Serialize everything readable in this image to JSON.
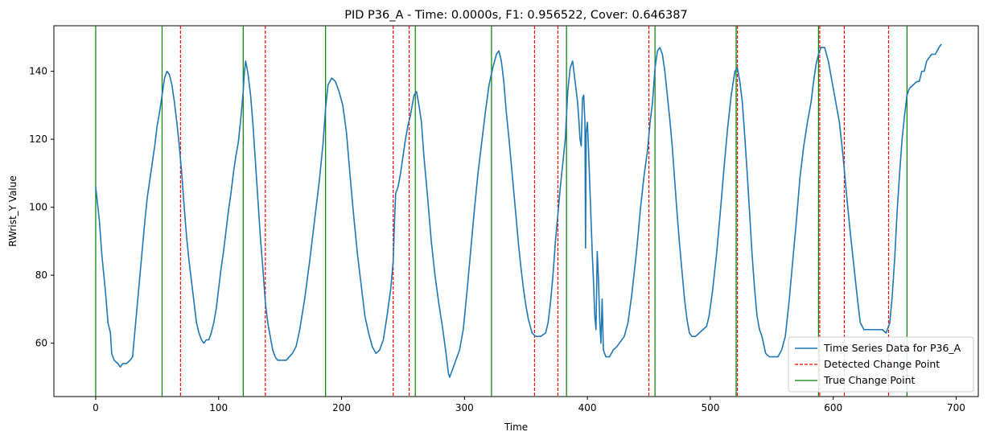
{
  "chart_data": {
    "type": "line",
    "title": "PID P36_A - Time: 0.0000s, F1: 0.956522, Cover: 0.646387",
    "xlabel": "Time",
    "ylabel": "RWrist_Y Value",
    "xlim": [
      -34,
      718
    ],
    "ylim": [
      44.3,
      153.4
    ],
    "xticks": [
      0,
      100,
      200,
      300,
      400,
      500,
      600,
      700
    ],
    "yticks": [
      60,
      80,
      100,
      120,
      140
    ],
    "grid": false,
    "legend_position": "lower-right",
    "series": [
      {
        "name": "Time Series Data for P36_A",
        "color": "#1f77b4",
        "points": [
          [
            0,
            106
          ],
          [
            3,
            96
          ],
          [
            5,
            86
          ],
          [
            8,
            75
          ],
          [
            10,
            66
          ],
          [
            12,
            63
          ],
          [
            13,
            57
          ],
          [
            15,
            55
          ],
          [
            18,
            54
          ],
          [
            20,
            53
          ],
          [
            22,
            54
          ],
          [
            25,
            54
          ],
          [
            28,
            55
          ],
          [
            30,
            56
          ],
          [
            31,
            60
          ],
          [
            32,
            64
          ],
          [
            34,
            72
          ],
          [
            36,
            80
          ],
          [
            38,
            88
          ],
          [
            40,
            96
          ],
          [
            42,
            103
          ],
          [
            44,
            108
          ],
          [
            46,
            113
          ],
          [
            48,
            118
          ],
          [
            50,
            124
          ],
          [
            52,
            128
          ],
          [
            54,
            133
          ],
          [
            56,
            138
          ],
          [
            58,
            140
          ],
          [
            60,
            139
          ],
          [
            62,
            136
          ],
          [
            64,
            131
          ],
          [
            66,
            125
          ],
          [
            68,
            118
          ],
          [
            70,
            110
          ],
          [
            72,
            100
          ],
          [
            74,
            91
          ],
          [
            76,
            84
          ],
          [
            78,
            78
          ],
          [
            80,
            72
          ],
          [
            82,
            66
          ],
          [
            84,
            63
          ],
          [
            86,
            61
          ],
          [
            88,
            60
          ],
          [
            90,
            61
          ],
          [
            92,
            61
          ],
          [
            94,
            63
          ],
          [
            96,
            66
          ],
          [
            98,
            70
          ],
          [
            100,
            76
          ],
          [
            102,
            82
          ],
          [
            104,
            87
          ],
          [
            106,
            93
          ],
          [
            108,
            99
          ],
          [
            110,
            104
          ],
          [
            112,
            110
          ],
          [
            114,
            115
          ],
          [
            116,
            119
          ],
          [
            118,
            126
          ],
          [
            120,
            134
          ],
          [
            121,
            140
          ],
          [
            122,
            143
          ],
          [
            124,
            139
          ],
          [
            126,
            133
          ],
          [
            128,
            124
          ],
          [
            130,
            113
          ],
          [
            132,
            102
          ],
          [
            134,
            91
          ],
          [
            136,
            82
          ],
          [
            138,
            72
          ],
          [
            140,
            66
          ],
          [
            142,
            62
          ],
          [
            144,
            58
          ],
          [
            146,
            56
          ],
          [
            148,
            55
          ],
          [
            150,
            55
          ],
          [
            155,
            55
          ],
          [
            160,
            57
          ],
          [
            163,
            59
          ],
          [
            166,
            64
          ],
          [
            170,
            73
          ],
          [
            174,
            84
          ],
          [
            178,
            96
          ],
          [
            182,
            108
          ],
          [
            185,
            119
          ],
          [
            187,
            129
          ],
          [
            189,
            136
          ],
          [
            192,
            138
          ],
          [
            195,
            137
          ],
          [
            198,
            134
          ],
          [
            201,
            130
          ],
          [
            204,
            122
          ],
          [
            207,
            109
          ],
          [
            210,
            97
          ],
          [
            213,
            86
          ],
          [
            216,
            77
          ],
          [
            219,
            68
          ],
          [
            222,
            63
          ],
          [
            225,
            59
          ],
          [
            228,
            57
          ],
          [
            231,
            58
          ],
          [
            234,
            61
          ],
          [
            237,
            68
          ],
          [
            240,
            76
          ],
          [
            242,
            84
          ],
          [
            243,
            95
          ],
          [
            244,
            104
          ],
          [
            246,
            106
          ],
          [
            248,
            110
          ],
          [
            250,
            115
          ],
          [
            252,
            120
          ],
          [
            254,
            124
          ],
          [
            256,
            127
          ],
          [
            258,
            131
          ],
          [
            259,
            133
          ],
          [
            261,
            134
          ],
          [
            263,
            130
          ],
          [
            265,
            125
          ],
          [
            267,
            115
          ],
          [
            270,
            103
          ],
          [
            273,
            90
          ],
          [
            276,
            80
          ],
          [
            279,
            72
          ],
          [
            282,
            65
          ],
          [
            285,
            57
          ],
          [
            287,
            51
          ],
          [
            288,
            50
          ],
          [
            290,
            52
          ],
          [
            293,
            55
          ],
          [
            296,
            58
          ],
          [
            299,
            64
          ],
          [
            302,
            75
          ],
          [
            305,
            87
          ],
          [
            308,
            99
          ],
          [
            311,
            110
          ],
          [
            314,
            119
          ],
          [
            317,
            128
          ],
          [
            320,
            136
          ],
          [
            323,
            141
          ],
          [
            326,
            145
          ],
          [
            328,
            146
          ],
          [
            330,
            143
          ],
          [
            332,
            137
          ],
          [
            334,
            128
          ],
          [
            336,
            121
          ],
          [
            338,
            113
          ],
          [
            340,
            105
          ],
          [
            342,
            97
          ],
          [
            344,
            89
          ],
          [
            346,
            82
          ],
          [
            348,
            76
          ],
          [
            350,
            71
          ],
          [
            352,
            67
          ],
          [
            355,
            63
          ],
          [
            358,
            62
          ],
          [
            362,
            62
          ],
          [
            366,
            63
          ],
          [
            368,
            66
          ],
          [
            370,
            72
          ],
          [
            372,
            80
          ],
          [
            374,
            90
          ],
          [
            376,
            98
          ],
          [
            378,
            106
          ],
          [
            380,
            113
          ],
          [
            382,
            120
          ],
          [
            383,
            127
          ],
          [
            384,
            134
          ],
          [
            386,
            141
          ],
          [
            388,
            143
          ],
          [
            390,
            137
          ],
          [
            392,
            131
          ],
          [
            393,
            126
          ],
          [
            394,
            120
          ],
          [
            395,
            118
          ],
          [
            396,
            132
          ],
          [
            397,
            133
          ],
          [
            398,
            125
          ],
          [
            398.5,
            88
          ],
          [
            399,
            122
          ],
          [
            400,
            125
          ],
          [
            401,
            116
          ],
          [
            402,
            106
          ],
          [
            403,
            96
          ],
          [
            404,
            86
          ],
          [
            405,
            78
          ],
          [
            406,
            68
          ],
          [
            407,
            64
          ],
          [
            408,
            87
          ],
          [
            409,
            79
          ],
          [
            410,
            67
          ],
          [
            411,
            60
          ],
          [
            412,
            73
          ],
          [
            413,
            58
          ],
          [
            415,
            56
          ],
          [
            418,
            56
          ],
          [
            421,
            58
          ],
          [
            424,
            59
          ],
          [
            426,
            60
          ],
          [
            430,
            62
          ],
          [
            433,
            66
          ],
          [
            436,
            74
          ],
          [
            440,
            87
          ],
          [
            443,
            99
          ],
          [
            446,
            109
          ],
          [
            449,
            117
          ],
          [
            451,
            125
          ],
          [
            453,
            131
          ],
          [
            455,
            141
          ],
          [
            457,
            146
          ],
          [
            459,
            147
          ],
          [
            461,
            145
          ],
          [
            463,
            140
          ],
          [
            465,
            133
          ],
          [
            467,
            126
          ],
          [
            469,
            118
          ],
          [
            471,
            108
          ],
          [
            473,
            98
          ],
          [
            475,
            89
          ],
          [
            477,
            81
          ],
          [
            479,
            73
          ],
          [
            481,
            67
          ],
          [
            483,
            63
          ],
          [
            485,
            62
          ],
          [
            488,
            62
          ],
          [
            491,
            63
          ],
          [
            494,
            64
          ],
          [
            497,
            65
          ],
          [
            499,
            68
          ],
          [
            502,
            76
          ],
          [
            505,
            86
          ],
          [
            508,
            98
          ],
          [
            511,
            111
          ],
          [
            514,
            123
          ],
          [
            517,
            133
          ],
          [
            520,
            140
          ],
          [
            522,
            141
          ],
          [
            524,
            137
          ],
          [
            526,
            131
          ],
          [
            528,
            121
          ],
          [
            530,
            110
          ],
          [
            532,
            98
          ],
          [
            534,
            86
          ],
          [
            536,
            76
          ],
          [
            538,
            68
          ],
          [
            540,
            64
          ],
          [
            542,
            62
          ],
          [
            545,
            57
          ],
          [
            548,
            56
          ],
          [
            552,
            56
          ],
          [
            555,
            56
          ],
          [
            558,
            58
          ],
          [
            561,
            62
          ],
          [
            564,
            72
          ],
          [
            567,
            84
          ],
          [
            570,
            96
          ],
          [
            573,
            109
          ],
          [
            576,
            118
          ],
          [
            579,
            125
          ],
          [
            582,
            131
          ],
          [
            584,
            137
          ],
          [
            586,
            142
          ],
          [
            588,
            145
          ],
          [
            590,
            147
          ],
          [
            593,
            147
          ],
          [
            596,
            143
          ],
          [
            599,
            137
          ],
          [
            602,
            131
          ],
          [
            605,
            125
          ],
          [
            608,
            115
          ],
          [
            611,
            103
          ],
          [
            614,
            92
          ],
          [
            617,
            82
          ],
          [
            620,
            72
          ],
          [
            622,
            66
          ],
          [
            625,
            64
          ],
          [
            628,
            64
          ],
          [
            632,
            64
          ],
          [
            636,
            64
          ],
          [
            640,
            64
          ],
          [
            643,
            63
          ],
          [
            646,
            66
          ],
          [
            648,
            74
          ],
          [
            650,
            85
          ],
          [
            652,
            99
          ],
          [
            654,
            110
          ],
          [
            656,
            120
          ],
          [
            658,
            127
          ],
          [
            660,
            133
          ],
          [
            662,
            135
          ],
          [
            665,
            136
          ],
          [
            668,
            137
          ],
          [
            670,
            137
          ],
          [
            672,
            140
          ],
          [
            674,
            140
          ],
          [
            676,
            143
          ],
          [
            678,
            144
          ],
          [
            680,
            145
          ],
          [
            683,
            145
          ],
          [
            686,
            147
          ],
          [
            688,
            148
          ]
        ]
      }
    ],
    "detected_change_points": [
      69,
      138,
      242,
      255,
      357,
      376,
      450,
      522,
      589,
      609,
      645
    ],
    "true_change_points": [
      0,
      54,
      120,
      187,
      260,
      322,
      383,
      455,
      521,
      588,
      660
    ],
    "legend": [
      {
        "label": "Time Series Data for P36_A",
        "style": "solid",
        "color": "#1f77b4"
      },
      {
        "label": "Detected Change Point",
        "style": "dashed",
        "color": "#ff0000"
      },
      {
        "label": "True Change Point",
        "style": "solid",
        "color": "#008000"
      }
    ]
  }
}
